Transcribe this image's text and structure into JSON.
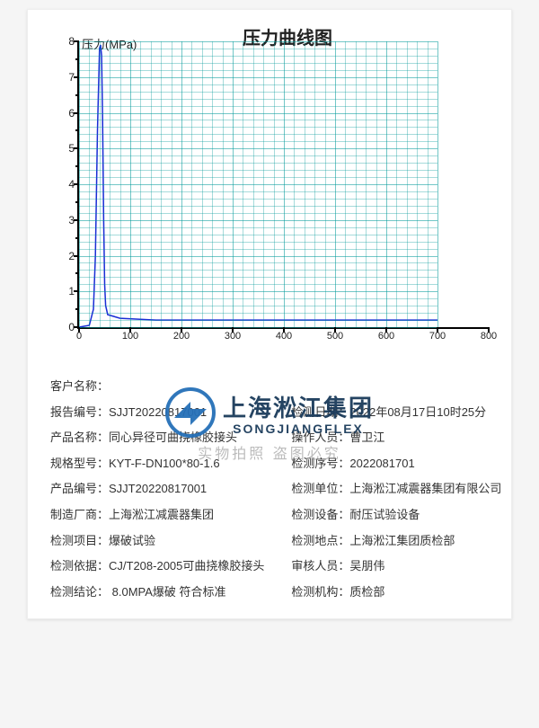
{
  "chart": {
    "type": "line",
    "title": "压力曲线图",
    "y_axis_label": "压力(MPa)",
    "x_range": [
      0,
      800
    ],
    "y_range": [
      0,
      8
    ],
    "x_ticks": [
      0,
      100,
      200,
      300,
      400,
      500,
      600,
      700,
      800
    ],
    "y_ticks": [
      0,
      1,
      2,
      3,
      4,
      5,
      6,
      7,
      8
    ],
    "x_grid_step_minor": 20,
    "y_grid_step_minor": 0.2,
    "grid_color": "#009999",
    "line_color": "#1a2cd6",
    "line_width": 1.5,
    "background_color": "#ffffff",
    "series": [
      {
        "x": 0,
        "y": 0
      },
      {
        "x": 20,
        "y": 0.05
      },
      {
        "x": 28,
        "y": 0.5
      },
      {
        "x": 32,
        "y": 2.0
      },
      {
        "x": 36,
        "y": 5.5
      },
      {
        "x": 40,
        "y": 7.8
      },
      {
        "x": 42,
        "y": 7.9
      },
      {
        "x": 44,
        "y": 7.6
      },
      {
        "x": 46,
        "y": 5.8
      },
      {
        "x": 48,
        "y": 3.0
      },
      {
        "x": 50,
        "y": 1.2
      },
      {
        "x": 52,
        "y": 0.6
      },
      {
        "x": 56,
        "y": 0.35
      },
      {
        "x": 80,
        "y": 0.25
      },
      {
        "x": 150,
        "y": 0.2
      },
      {
        "x": 300,
        "y": 0.2
      },
      {
        "x": 500,
        "y": 0.2
      },
      {
        "x": 700,
        "y": 0.2
      }
    ]
  },
  "info": {
    "customer_label": "客户名称：",
    "customer_value": "",
    "report_no_label": "报告编号：",
    "report_no_value": "SJJT20220817001",
    "test_date_label": "检测日期：",
    "test_date_value": "2022年08月17日10时25分",
    "product_name_label": "产品名称：",
    "product_name_value": "同心异径可曲挠橡胶接头",
    "operator_label": "操作人员：",
    "operator_value": "曹卫江",
    "spec_label": "规格型号：",
    "spec_value": "KYT-F-DN100*80-1.6",
    "test_seq_label": "检测序号：",
    "test_seq_value": "2022081701",
    "product_no_label": "产品编号：",
    "product_no_value": "SJJT20220817001",
    "test_unit_label": "检测单位：",
    "test_unit_value": "上海淞江减震器集团有限公司",
    "manufacturer_label": "制造厂商：",
    "manufacturer_value": "上海淞江减震器集团",
    "equipment_label": "检测设备：",
    "equipment_value": "耐压试验设备",
    "test_item_label": "检测项目：",
    "test_item_value": "爆破试验",
    "test_loc_label": "检测地点：",
    "test_loc_value": "上海淞江集团质检部",
    "basis_label": "检测依据：",
    "basis_value": "CJ/T208-2005可曲挠橡胶接头",
    "auditor_label": "审核人员：",
    "auditor_value": "吴朋伟",
    "conclusion_label": "检测结论：",
    "conclusion_value": " 8.0MPA爆破  符合标准",
    "org_label": "检测机构：",
    "org_value": "质检部"
  },
  "logo": {
    "cn": "上海淞江集团",
    "en": "SONGJIANGFLEX",
    "watermark": "实物拍照  盗图必究",
    "circle_color": "#2570b8"
  }
}
